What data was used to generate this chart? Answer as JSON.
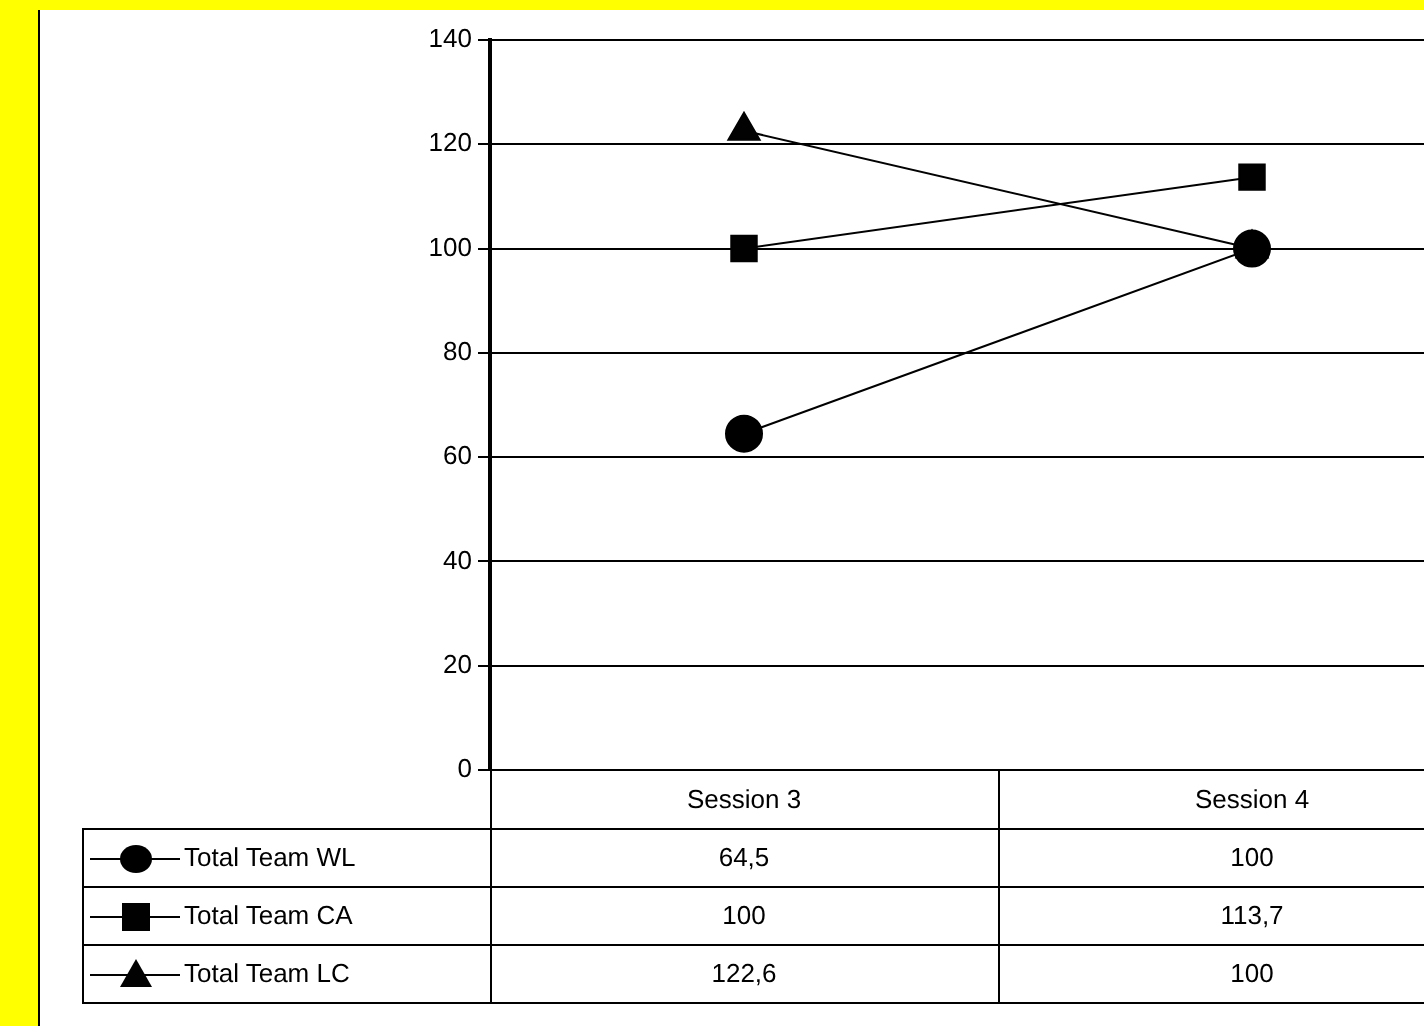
{
  "chart_data": {
    "type": "line",
    "categories": [
      "Session 3",
      "Session 4"
    ],
    "series": [
      {
        "name": "Total Team WL",
        "color": "#000000",
        "marker": "circle",
        "values": [
          64.5,
          100
        ],
        "value_labels": [
          "64,5",
          "100"
        ]
      },
      {
        "name": "Total Team CA",
        "color": "#010101",
        "marker": "square",
        "values": [
          100,
          113.7
        ],
        "value_labels": [
          "100",
          "113,7"
        ]
      },
      {
        "name": "Total Team LC",
        "color": "#020202",
        "marker": "triangle",
        "values": [
          122.6,
          100
        ],
        "value_labels": [
          "122,6",
          "100"
        ]
      }
    ],
    "ylim": [
      0,
      140
    ],
    "yticks": [
      0,
      20,
      40,
      60,
      80,
      100,
      120,
      140
    ],
    "grid": "y",
    "legend": "bottom",
    "line_style": "solid"
  }
}
